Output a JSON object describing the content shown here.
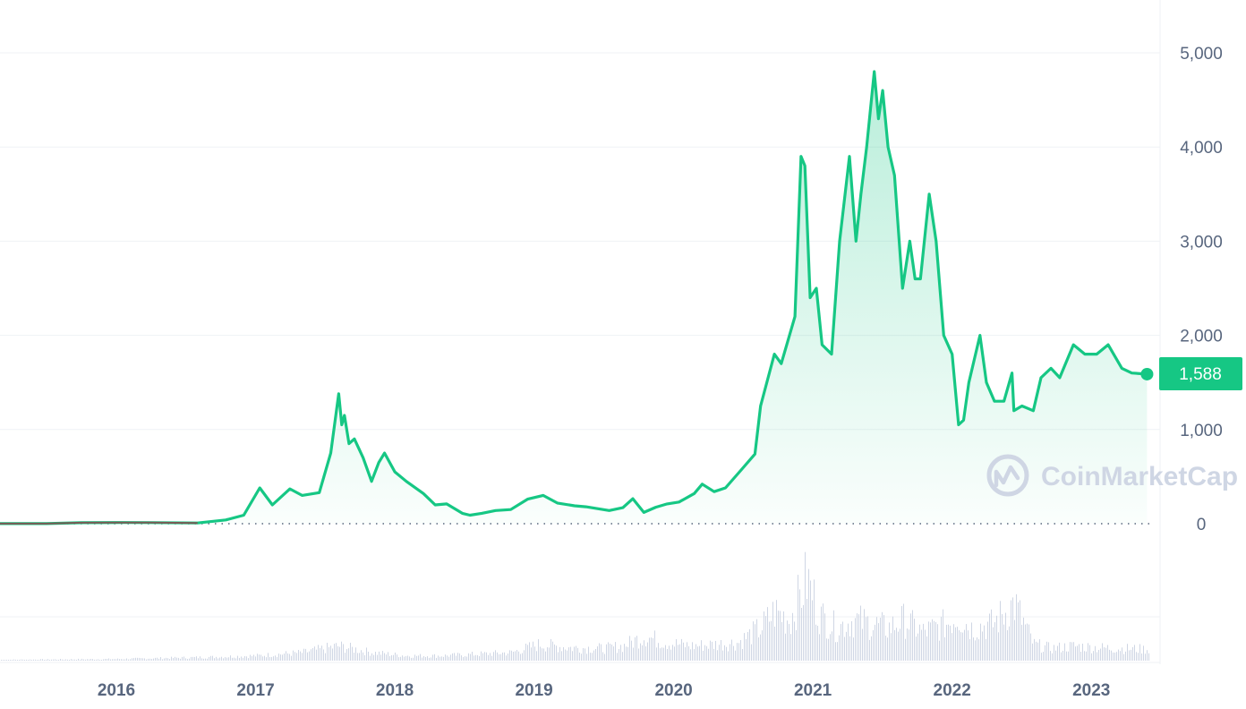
{
  "watermark": "CoinMarketCap",
  "colors": {
    "line": "#16c784",
    "area_top": "#16c784",
    "pre_2017_line": "#7a5a55",
    "volume": "#cfd6e4",
    "grid": "#eff2f5",
    "badge": "#16c784",
    "axis_text": "#58667e"
  },
  "chart_data": {
    "type": "area",
    "title": "",
    "xlabel": "",
    "ylabel": "",
    "xlim": [
      "2015-08-01",
      "2023-10-31"
    ],
    "ylim": [
      0,
      5000
    ],
    "x_ticks": [
      "2016",
      "2017",
      "2018",
      "2019",
      "2020",
      "2021",
      "2022",
      "2023"
    ],
    "y_ticks": [
      "0",
      "1,000",
      "2,000",
      "3,000",
      "4,000",
      "5,000"
    ],
    "grid": true,
    "current_price": 1588,
    "current_price_label": "1,588",
    "series": [
      {
        "x": [
          "2015-08-01",
          "2015-12-01",
          "2016-03-01",
          "2016-06-15",
          "2016-09-01",
          "2016-12-31",
          "2017-03-15",
          "2017-05-01",
          "2017-06-12",
          "2017-07-15",
          "2017-08-30",
          "2017-10-01",
          "2017-11-15",
          "2017-12-15",
          "2018-01-05",
          "2018-01-13",
          "2018-01-20",
          "2018-02-01",
          "2018-02-15",
          "2018-03-10",
          "2018-04-01",
          "2018-04-20",
          "2018-05-05",
          "2018-06-01",
          "2018-07-01",
          "2018-08-15",
          "2018-09-15",
          "2018-10-15",
          "2018-11-25",
          "2018-12-15",
          "2019-01-15",
          "2019-02-20",
          "2019-04-01",
          "2019-05-15",
          "2019-06-25",
          "2019-08-01",
          "2019-09-15",
          "2019-10-15",
          "2019-12-15",
          "2020-01-20",
          "2020-02-15",
          "2020-03-15",
          "2020-04-15",
          "2020-05-15",
          "2020-06-15",
          "2020-07-25",
          "2020-08-15",
          "2020-09-15",
          "2020-10-15",
          "2020-11-25",
          "2020-12-31",
          "2021-01-15",
          "2021-02-20",
          "2021-03-10",
          "2021-04-15",
          "2021-05-01",
          "2021-05-11",
          "2021-05-25",
          "2021-06-10",
          "2021-06-25",
          "2021-07-20",
          "2021-08-10",
          "2021-09-05",
          "2021-09-22",
          "2021-10-05",
          "2021-10-20",
          "2021-11-09",
          "2021-11-20",
          "2021-12-01",
          "2021-12-15",
          "2022-01-01",
          "2022-01-22",
          "2022-02-10",
          "2022-02-24",
          "2022-03-10",
          "2022-04-02",
          "2022-04-20",
          "2022-05-10",
          "2022-06-01",
          "2022-06-18",
          "2022-07-01",
          "2022-07-15",
          "2022-08-13",
          "2022-08-30",
          "2022-09-20",
          "2022-10-15",
          "2022-11-05",
          "2022-11-10",
          "2022-12-01",
          "2022-12-31",
          "2023-01-20",
          "2023-02-15",
          "2023-03-10",
          "2023-04-15",
          "2023-05-15",
          "2023-06-15",
          "2023-07-15",
          "2023-08-20",
          "2023-09-15",
          "2023-10-25"
        ],
        "y": [
          1,
          1,
          10,
          12,
          11,
          8,
          40,
          90,
          380,
          200,
          370,
          300,
          330,
          750,
          1380,
          1050,
          1150,
          850,
          900,
          700,
          450,
          650,
          750,
          550,
          450,
          320,
          200,
          210,
          110,
          90,
          110,
          140,
          150,
          260,
          300,
          220,
          190,
          180,
          140,
          170,
          265,
          120,
          175,
          210,
          230,
          320,
          420,
          340,
          380,
          570,
          740,
          1250,
          1800,
          1700,
          2200,
          3900,
          3800,
          2400,
          2500,
          1900,
          1800,
          3000,
          3900,
          3000,
          3500,
          4000,
          4800,
          4300,
          4600,
          4000,
          3700,
          2500,
          3000,
          2600,
          2600,
          3500,
          3000,
          2000,
          1800,
          1050,
          1100,
          1500,
          2000,
          1500,
          1300,
          1300,
          1600,
          1200,
          1250,
          1200,
          1550,
          1650,
          1550,
          1900,
          1800,
          1800,
          1900,
          1650,
          1600,
          1588
        ]
      }
    ],
    "volume": {
      "x": [
        "2015-08-01",
        "2016-06-01",
        "2017-01-01",
        "2017-06-01",
        "2017-10-01",
        "2018-01-05",
        "2018-04-01",
        "2018-07-01",
        "2018-10-01",
        "2019-01-01",
        "2019-04-01",
        "2019-06-15",
        "2019-09-01",
        "2019-12-01",
        "2020-01-20",
        "2020-03-15",
        "2020-05-15",
        "2020-07-15",
        "2020-09-15",
        "2020-11-15",
        "2021-01-15",
        "2021-02-20",
        "2021-04-01",
        "2021-05-15",
        "2021-06-20",
        "2021-08-01",
        "2021-09-15",
        "2021-11-01",
        "2021-12-15",
        "2022-01-25",
        "2022-03-15",
        "2022-05-15",
        "2022-06-15",
        "2022-07-20",
        "2022-09-15",
        "2022-11-10",
        "2022-12-31",
        "2023-02-15",
        "2023-04-15",
        "2023-06-15",
        "2023-08-15",
        "2023-10-25"
      ],
      "values": [
        0.01,
        0.02,
        0.04,
        0.06,
        0.1,
        0.18,
        0.1,
        0.06,
        0.06,
        0.08,
        0.1,
        0.2,
        0.16,
        0.15,
        0.18,
        0.3,
        0.22,
        0.18,
        0.2,
        0.22,
        0.4,
        0.6,
        0.5,
        1.0,
        0.55,
        0.4,
        0.5,
        0.45,
        0.4,
        0.5,
        0.35,
        0.45,
        0.55,
        0.4,
        0.45,
        0.7,
        0.2,
        0.15,
        0.18,
        0.16,
        0.15,
        0.14
      ]
    }
  }
}
